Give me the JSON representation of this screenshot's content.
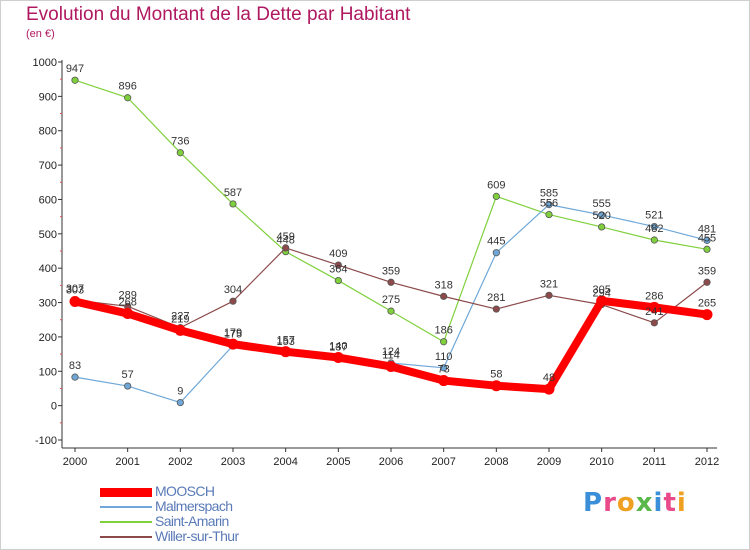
{
  "title": "Evolution du Montant de la Dette par Habitant",
  "subtitle": "(en €)",
  "logo_text": "Proxiti",
  "chart_data": {
    "type": "line",
    "x": [
      "2000",
      "2001",
      "2002",
      "2003",
      "2004",
      "2005",
      "2006",
      "2007",
      "2008",
      "2009",
      "2010",
      "2011",
      "2012"
    ],
    "ylim": [
      -100,
      1000
    ],
    "yticks": [
      -100,
      0,
      100,
      200,
      300,
      400,
      500,
      600,
      700,
      800,
      900,
      1000
    ],
    "grid": false,
    "legend_position": "bottom-left",
    "series": [
      {
        "name": "MOOSCH",
        "color": "#ff0000",
        "values": [
          303,
          268,
          219,
          179,
          157,
          140,
          114,
          73,
          58,
          48,
          305,
          286,
          265
        ]
      },
      {
        "name": "Malmerspach",
        "color": "#6fa8d8",
        "values": [
          83,
          57,
          9,
          175,
          153,
          137,
          124,
          110,
          445,
          585,
          555,
          521,
          481
        ]
      },
      {
        "name": "Saint-Amarin",
        "color": "#7fd03c",
        "values": [
          947,
          896,
          736,
          587,
          448,
          364,
          275,
          186,
          609,
          556,
          520,
          482,
          455
        ]
      },
      {
        "name": "Willer-sur-Thur",
        "color": "#8c4a4a",
        "values": [
          307,
          289,
          227,
          304,
          459,
          409,
          359,
          318,
          281,
          321,
          294,
          241,
          359
        ]
      }
    ]
  }
}
